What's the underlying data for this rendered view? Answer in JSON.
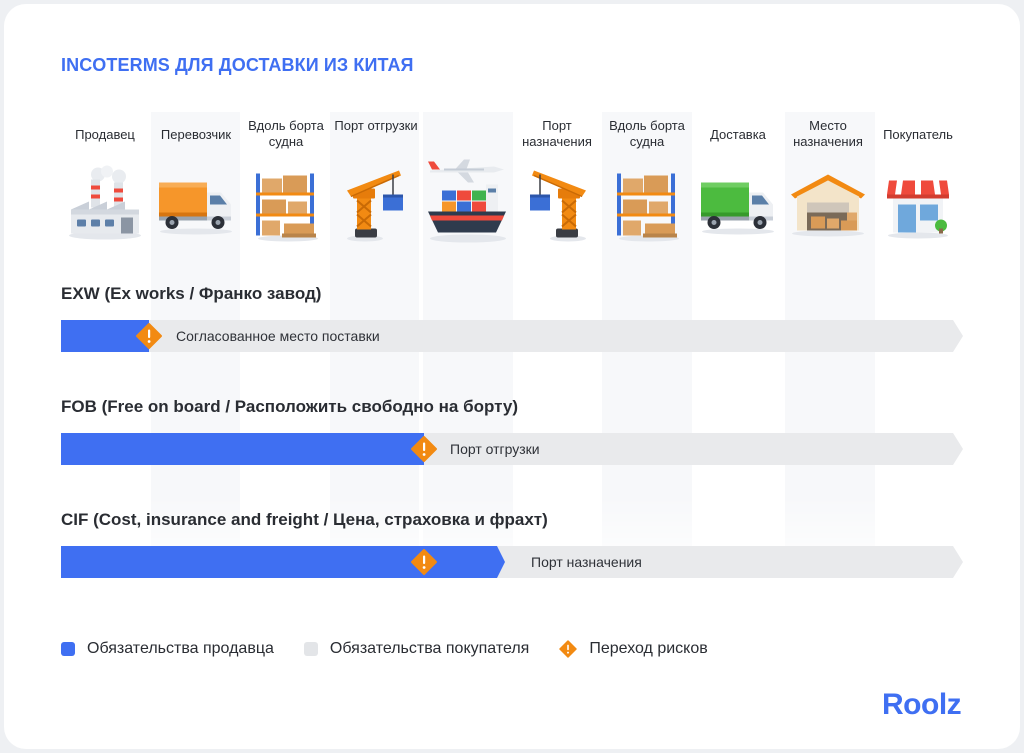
{
  "title": "INCOTERMS ДЛЯ ДОСТАВКИ ИЗ КИТАЯ",
  "columns": [
    {
      "label": "Продавец",
      "icon": "factory-icon"
    },
    {
      "label": "Перевозчик",
      "icon": "truck-icon"
    },
    {
      "label": "Вдоль борта судна",
      "icon": "warehouse-rack-icon"
    },
    {
      "label": "Порт отгрузки",
      "icon": "port-crane-icon"
    },
    {
      "label": "",
      "icon": "ship-plane-icon"
    },
    {
      "label": "Порт назначения",
      "icon": "port-crane-icon"
    },
    {
      "label": "Вдоль борта судна",
      "icon": "warehouse-rack-icon"
    },
    {
      "label": "Доставка",
      "icon": "truck-icon"
    },
    {
      "label": "Место назначения",
      "icon": "warehouse-icon"
    },
    {
      "label": "Покупатель",
      "icon": "shop-icon"
    }
  ],
  "terms": [
    {
      "name": "EXW (Ex works / Франко завод)",
      "point_label": "Согласованное место поставки",
      "seller_share": 0.098,
      "risk_transfer": 0.098
    },
    {
      "name": "FOB (Free on board / Расположить свободно на борту)",
      "point_label": "Порт отгрузки",
      "seller_share": 0.402,
      "risk_transfer": 0.402
    },
    {
      "name": "CIF (Cost, insurance and freight / Цена, страховка и фрахт)",
      "point_label": "Порт назначения",
      "seller_share": 0.492,
      "risk_transfer": 0.402
    }
  ],
  "legend": {
    "seller": "Обязательства продавца",
    "buyer": "Обязательства покупателя",
    "risk": "Переход рисков"
  },
  "logo": "Roolz",
  "colors": {
    "accent": "#3f6ff2",
    "buyer_track": "#e9eaec",
    "risk_marker": "#f28a12",
    "stripe": "#f7f8fa"
  }
}
